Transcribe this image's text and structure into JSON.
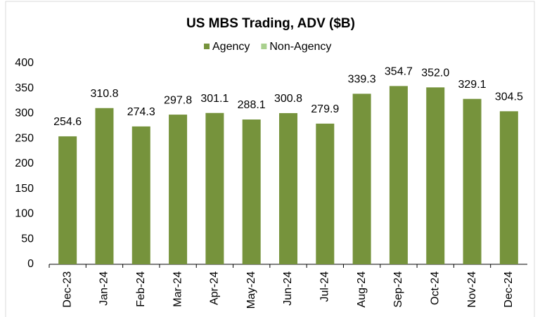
{
  "chart_data": {
    "type": "bar",
    "title": "US MBS Trading, ADV ($B)",
    "categories": [
      "Dec-23",
      "Jan-24",
      "Feb-24",
      "Mar-24",
      "Apr-24",
      "May-24",
      "Jun-24",
      "Jul-24",
      "Aug-24",
      "Sep-24",
      "Oct-24",
      "Nov-24",
      "Dec-24"
    ],
    "series": [
      {
        "name": "Agency",
        "color": "#76933c",
        "values": [
          254.6,
          310.8,
          274.3,
          297.8,
          301.1,
          288.1,
          300.8,
          279.9,
          339.3,
          354.7,
          352.0,
          329.1,
          304.5
        ],
        "value_labels": [
          "254.6",
          "310.8",
          "274.3",
          "297.8",
          "301.1",
          "288.1",
          "300.8",
          "279.9",
          "339.3",
          "354.7",
          "352.0",
          "329.1",
          "304.5"
        ]
      },
      {
        "name": "Non-Agency",
        "color": "#a9d08e",
        "values": [
          null,
          null,
          null,
          null,
          null,
          null,
          null,
          null,
          null,
          null,
          null,
          null,
          null
        ]
      }
    ],
    "stacked": true,
    "ylim": [
      0,
      400
    ],
    "yticks": [
      0,
      50,
      100,
      150,
      200,
      250,
      300,
      350,
      400
    ],
    "grid": false,
    "legend": "top"
  }
}
